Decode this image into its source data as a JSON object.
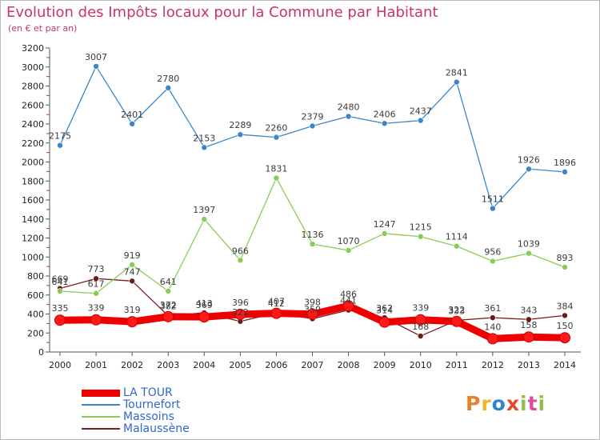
{
  "header": {
    "title": "Evolution des Impôts locaux pour la Commune par Habitant",
    "subtitle": "(en € et par an)"
  },
  "logo": {
    "text": "Proxiti",
    "colors": [
      "#e8812c",
      "#f0b428",
      "#2f86c8",
      "#e04a2f",
      "#8cc04a",
      "#d94f9b",
      "#8cc04a"
    ]
  },
  "chart_data": {
    "type": "line",
    "title": "Evolution des Impôts locaux pour la Commune par Habitant",
    "subtitle": "(en € et par an)",
    "x": [
      "2000",
      "2001",
      "2002",
      "2003",
      "2004",
      "2005",
      "2006",
      "2007",
      "2008",
      "2009",
      "2010",
      "2011",
      "2012",
      "2013",
      "2014"
    ],
    "y_ticks": [
      0,
      200,
      400,
      600,
      800,
      1000,
      1200,
      1400,
      1600,
      1800,
      2000,
      2200,
      2400,
      2600,
      2800,
      3000,
      3200
    ],
    "ylim": [
      0,
      3200
    ],
    "grid": false,
    "legend_position": "bottom-left",
    "series": [
      {
        "name": "LA TOUR",
        "color": "#ff0000",
        "values": [
          335,
          339,
          319,
          372,
          369,
          396,
          407,
          398,
          486,
          314,
          339,
          322,
          140,
          158,
          150
        ]
      },
      {
        "name": "Tournefort",
        "color": "#3b86c8",
        "values": [
          2175,
          3007,
          2401,
          2780,
          2153,
          2289,
          2260,
          2379,
          2480,
          2406,
          2437,
          2841,
          1511,
          1926,
          1896
        ]
      },
      {
        "name": "Massoins",
        "color": "#88cc55",
        "values": [
          641,
          617,
          919,
          641,
          1397,
          966,
          1831,
          1136,
          1070,
          1247,
          1215,
          1114,
          956,
          1039,
          893
        ]
      },
      {
        "name": "Malaussène",
        "color": "#882222",
        "values": [
          669,
          773,
          747,
          382,
          413,
          322,
          412,
          350,
          441,
          362,
          168,
          333,
          361,
          343,
          384
        ]
      }
    ]
  }
}
